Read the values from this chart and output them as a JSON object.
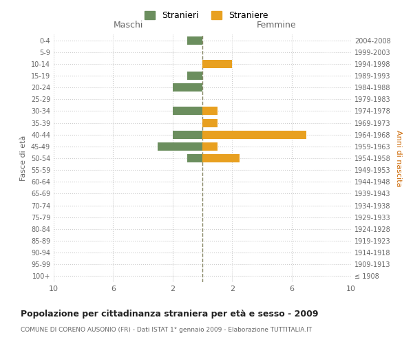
{
  "age_groups": [
    "100+",
    "95-99",
    "90-94",
    "85-89",
    "80-84",
    "75-79",
    "70-74",
    "65-69",
    "60-64",
    "55-59",
    "50-54",
    "45-49",
    "40-44",
    "35-39",
    "30-34",
    "25-29",
    "20-24",
    "15-19",
    "10-14",
    "5-9",
    "0-4"
  ],
  "birth_years": [
    "≤ 1908",
    "1909-1913",
    "1914-1918",
    "1919-1923",
    "1924-1928",
    "1929-1933",
    "1934-1938",
    "1939-1943",
    "1944-1948",
    "1949-1953",
    "1954-1958",
    "1959-1963",
    "1964-1968",
    "1969-1973",
    "1974-1978",
    "1979-1983",
    "1984-1988",
    "1989-1993",
    "1994-1998",
    "1999-2003",
    "2004-2008"
  ],
  "maschi": [
    0,
    0,
    0,
    0,
    0,
    0,
    0,
    0,
    0,
    0,
    1,
    3,
    2,
    0,
    2,
    0,
    2,
    1,
    0,
    0,
    1
  ],
  "femmine": [
    0,
    0,
    0,
    0,
    0,
    0,
    0,
    0,
    0,
    0,
    2.5,
    1,
    7,
    1,
    1,
    0,
    0,
    0,
    2,
    0,
    0
  ],
  "color_maschi": "#6b8e5e",
  "color_femmine": "#e8a020",
  "xlim": 10,
  "title": "Popolazione per cittadinanza straniera per età e sesso - 2009",
  "subtitle": "COMUNE DI CORENO AUSONIO (FR) - Dati ISTAT 1° gennaio 2009 - Elaborazione TUTTITALIA.IT",
  "xlabel_left": "Maschi",
  "xlabel_right": "Femmine",
  "ylabel_left": "Fasce di età",
  "ylabel_right": "Anni di nascita",
  "legend_maschi": "Stranieri",
  "legend_femmine": "Straniere",
  "bg_color": "#ffffff",
  "bar_height": 0.7,
  "grid_color": "#cccccc",
  "center_line_color": "#888866",
  "text_color": "#666666"
}
